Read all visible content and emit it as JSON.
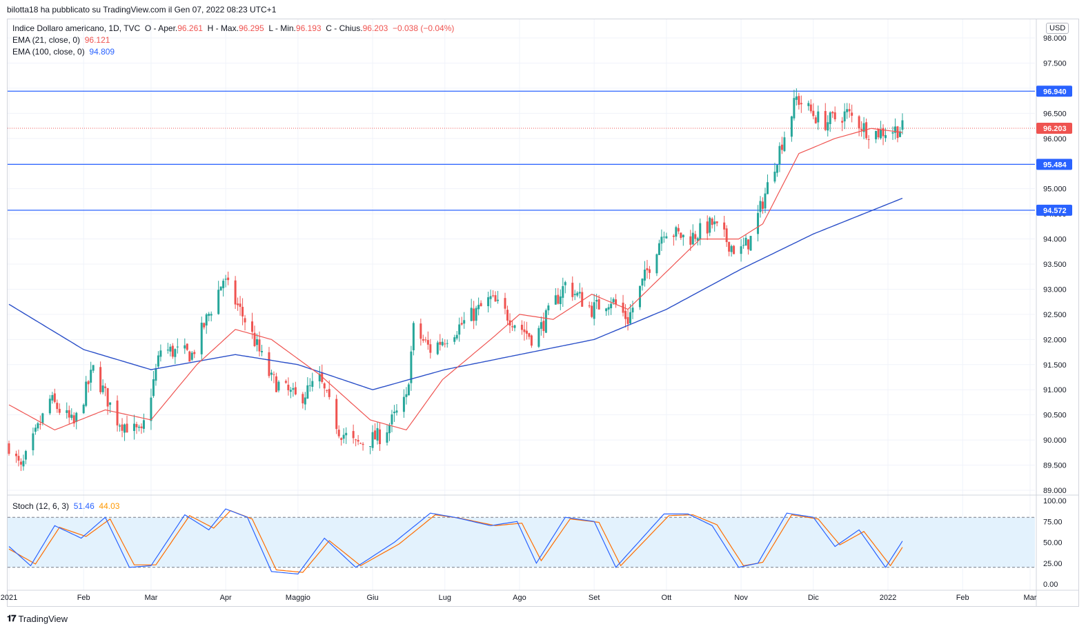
{
  "header": {
    "caption": "bilotta18 ha pubblicato su TradingView.com il Gen 07, 2022 08:23 UTC+1"
  },
  "legend": {
    "title": "Indice Dollaro americano, 1D, TVC",
    "o_label": "O - Aper.",
    "o_value": "96.261",
    "h_label": "H - Max.",
    "h_value": "96.295",
    "l_label": "L - Min.",
    "l_value": "96.193",
    "c_label": "C - Chius.",
    "c_value": "96.203",
    "change": "−0.038 (−0.04%)",
    "ema21_label": "EMA (21, close, 0)",
    "ema21_value": "96.121",
    "ema100_label": "EMA (100, close, 0)",
    "ema100_value": "94.809",
    "stoch_label": "Stoch (12, 6, 3)",
    "stoch_k": "51.46",
    "stoch_d": "44.03"
  },
  "currency": "USD",
  "footer": {
    "logo_text": "TradingView"
  },
  "colors": {
    "up": "#26a69a",
    "down": "#ef5350",
    "ema21": "#ef5350",
    "ema100": "#2a4fc8",
    "hline": "#2962ff",
    "stoch_k": "#2962ff",
    "stoch_d": "#ff6d00",
    "stoch_band": "#e3f2fd"
  },
  "chart_data": [
    {
      "type": "candlestick",
      "symbol": "Indice Dollaro americano, 1D, TVC",
      "ylim": [
        89.0,
        98.0
      ],
      "y_ticks": [
        "89.000",
        "89.500",
        "90.000",
        "90.500",
        "91.000",
        "91.500",
        "92.000",
        "92.500",
        "93.000",
        "93.500",
        "94.000",
        "94.500",
        "95.000",
        "95.500",
        "96.000",
        "96.500",
        "97.000",
        "97.500",
        "98.000"
      ],
      "x_labels": [
        {
          "label": "2021",
          "date": "2021-01-01"
        },
        {
          "label": "Feb",
          "date": "2021-02-01"
        },
        {
          "label": "Mar",
          "date": "2021-03-01"
        },
        {
          "label": "Apr",
          "date": "2021-04-01"
        },
        {
          "label": "Maggio",
          "date": "2021-05-01"
        },
        {
          "label": "Giu",
          "date": "2021-06-01"
        },
        {
          "label": "Lug",
          "date": "2021-07-01"
        },
        {
          "label": "Ago",
          "date": "2021-08-01"
        },
        {
          "label": "Set",
          "date": "2021-09-01"
        },
        {
          "label": "Ott",
          "date": "2021-10-01"
        },
        {
          "label": "Nov",
          "date": "2021-11-01"
        },
        {
          "label": "Dic",
          "date": "2021-12-01"
        },
        {
          "label": "2022",
          "date": "2022-01-01"
        },
        {
          "label": "Feb",
          "date": "2022-02-01"
        },
        {
          "label": "Mar",
          "date": "2022-03-01"
        }
      ],
      "x_start": "2020-12-31",
      "x_end": "2022-03-20",
      "horizontal_lines": [
        {
          "value": 96.94,
          "label": "96.940"
        },
        {
          "value": 95.484,
          "label": "95.484"
        },
        {
          "value": 94.572,
          "label": "94.572"
        }
      ],
      "last_price": {
        "value": 96.203,
        "label": "96.203"
      },
      "series": [
        {
          "name": "Indice Dollaro americano",
          "kind": "ohlc",
          "anchors": [
            [
              "2021-01-01",
              89.9
            ],
            [
              "2021-01-06",
              89.4
            ],
            [
              "2021-01-18",
              90.8
            ],
            [
              "2021-01-28",
              90.3
            ],
            [
              "2021-02-05",
              91.4
            ],
            [
              "2021-02-15",
              90.4
            ],
            [
              "2021-02-25",
              90.1
            ],
            [
              "2021-03-05",
              91.8
            ],
            [
              "2021-03-18",
              91.7
            ],
            [
              "2021-03-31",
              93.2
            ],
            [
              "2021-04-10",
              92.3
            ],
            [
              "2021-04-20",
              91.2
            ],
            [
              "2021-05-01",
              90.8
            ],
            [
              "2021-05-10",
              91.2
            ],
            [
              "2021-05-18",
              90.2
            ],
            [
              "2021-05-25",
              89.9
            ],
            [
              "2021-06-05",
              90.1
            ],
            [
              "2021-06-15",
              90.8
            ],
            [
              "2021-06-18",
              92.2
            ],
            [
              "2021-06-25",
              91.8
            ],
            [
              "2021-07-08",
              92.3
            ],
            [
              "2021-07-20",
              92.8
            ],
            [
              "2021-07-31",
              92.3
            ],
            [
              "2021-08-07",
              92.0
            ],
            [
              "2021-08-20",
              93.1
            ],
            [
              "2021-08-31",
              92.6
            ],
            [
              "2021-09-08",
              92.8
            ],
            [
              "2021-09-15",
              92.4
            ],
            [
              "2021-09-30",
              94.2
            ],
            [
              "2021-10-10",
              94.0
            ],
            [
              "2021-10-20",
              94.3
            ],
            [
              "2021-10-31",
              93.7
            ],
            [
              "2021-11-05",
              94.0
            ],
            [
              "2021-11-15",
              95.5
            ],
            [
              "2021-11-24",
              96.8
            ],
            [
              "2021-12-05",
              96.3
            ],
            [
              "2021-12-15",
              96.5
            ],
            [
              "2021-12-25",
              96.1
            ],
            [
              "2022-01-07",
              96.2
            ]
          ]
        },
        {
          "name": "EMA (21, close, 0)",
          "kind": "line",
          "points": [
            [
              "2021-01-01",
              90.7
            ],
            [
              "2021-01-20",
              90.2
            ],
            [
              "2021-02-10",
              90.6
            ],
            [
              "2021-03-01",
              90.4
            ],
            [
              "2021-03-20",
              91.5
            ],
            [
              "2021-04-05",
              92.2
            ],
            [
              "2021-04-20",
              92.0
            ],
            [
              "2021-05-10",
              91.3
            ],
            [
              "2021-05-31",
              90.4
            ],
            [
              "2021-06-15",
              90.2
            ],
            [
              "2021-06-30",
              91.2
            ],
            [
              "2021-07-20",
              92.0
            ],
            [
              "2021-08-01",
              92.5
            ],
            [
              "2021-08-15",
              92.4
            ],
            [
              "2021-08-31",
              92.9
            ],
            [
              "2021-09-15",
              92.6
            ],
            [
              "2021-09-30",
              93.3
            ],
            [
              "2021-10-15",
              94.0
            ],
            [
              "2021-10-31",
              94.0
            ],
            [
              "2021-11-10",
              94.3
            ],
            [
              "2021-11-25",
              95.7
            ],
            [
              "2021-12-10",
              96.0
            ],
            [
              "2021-12-25",
              96.2
            ],
            [
              "2022-01-07",
              96.12
            ]
          ]
        },
        {
          "name": "EMA (100, close, 0)",
          "kind": "line",
          "points": [
            [
              "2021-01-01",
              92.7
            ],
            [
              "2021-02-01",
              91.8
            ],
            [
              "2021-03-01",
              91.4
            ],
            [
              "2021-04-05",
              91.7
            ],
            [
              "2021-05-01",
              91.5
            ],
            [
              "2021-06-01",
              91.0
            ],
            [
              "2021-07-01",
              91.4
            ],
            [
              "2021-08-01",
              91.7
            ],
            [
              "2021-09-01",
              92.0
            ],
            [
              "2021-10-01",
              92.6
            ],
            [
              "2021-11-01",
              93.4
            ],
            [
              "2021-12-01",
              94.1
            ],
            [
              "2022-01-07",
              94.81
            ]
          ]
        }
      ]
    },
    {
      "type": "line",
      "name": "Stoch (12, 6, 3)",
      "ylim": [
        0,
        100
      ],
      "y_ticks": [
        "0.00",
        "25.00",
        "50.00",
        "75.00",
        "100.00"
      ],
      "bands": [
        20,
        80
      ],
      "series": [
        {
          "name": "K",
          "points": [
            [
              "2021-01-01",
              45
            ],
            [
              "2021-01-10",
              22
            ],
            [
              "2021-01-20",
              70
            ],
            [
              "2021-01-31",
              55
            ],
            [
              "2021-02-10",
              80
            ],
            [
              "2021-02-20",
              20
            ],
            [
              "2021-03-01",
              22
            ],
            [
              "2021-03-15",
              83
            ],
            [
              "2021-03-25",
              65
            ],
            [
              "2021-04-01",
              90
            ],
            [
              "2021-04-10",
              80
            ],
            [
              "2021-04-20",
              15
            ],
            [
              "2021-05-01",
              12
            ],
            [
              "2021-05-12",
              55
            ],
            [
              "2021-05-25",
              20
            ],
            [
              "2021-06-10",
              50
            ],
            [
              "2021-06-25",
              85
            ],
            [
              "2021-07-05",
              80
            ],
            [
              "2021-07-20",
              70
            ],
            [
              "2021-07-31",
              75
            ],
            [
              "2021-08-08",
              25
            ],
            [
              "2021-08-20",
              80
            ],
            [
              "2021-09-01",
              75
            ],
            [
              "2021-09-10",
              20
            ],
            [
              "2021-09-30",
              84
            ],
            [
              "2021-10-10",
              84
            ],
            [
              "2021-10-20",
              70
            ],
            [
              "2021-10-31",
              20
            ],
            [
              "2021-11-08",
              25
            ],
            [
              "2021-11-20",
              85
            ],
            [
              "2021-12-01",
              80
            ],
            [
              "2021-12-10",
              45
            ],
            [
              "2021-12-20",
              65
            ],
            [
              "2021-12-31",
              20
            ],
            [
              "2022-01-07",
              51.46
            ]
          ]
        },
        {
          "name": "D",
          "points": [
            [
              "2021-01-01",
              42
            ],
            [
              "2021-01-12",
              24
            ],
            [
              "2021-01-22",
              68
            ],
            [
              "2021-02-02",
              57
            ],
            [
              "2021-02-12",
              78
            ],
            [
              "2021-02-22",
              23
            ],
            [
              "2021-03-03",
              23
            ],
            [
              "2021-03-17",
              82
            ],
            [
              "2021-03-27",
              67
            ],
            [
              "2021-04-03",
              88
            ],
            [
              "2021-04-12",
              78
            ],
            [
              "2021-04-22",
              17
            ],
            [
              "2021-05-03",
              14
            ],
            [
              "2021-05-14",
              52
            ],
            [
              "2021-05-27",
              22
            ],
            [
              "2021-06-12",
              48
            ],
            [
              "2021-06-27",
              83
            ],
            [
              "2021-07-07",
              79
            ],
            [
              "2021-07-22",
              70
            ],
            [
              "2021-08-02",
              73
            ],
            [
              "2021-08-10",
              28
            ],
            [
              "2021-08-22",
              78
            ],
            [
              "2021-09-03",
              74
            ],
            [
              "2021-09-12",
              22
            ],
            [
              "2021-10-02",
              82
            ],
            [
              "2021-10-12",
              83
            ],
            [
              "2021-10-22",
              71
            ],
            [
              "2021-11-02",
              22
            ],
            [
              "2021-11-10",
              26
            ],
            [
              "2021-11-22",
              83
            ],
            [
              "2021-12-03",
              78
            ],
            [
              "2021-12-12",
              47
            ],
            [
              "2021-12-22",
              63
            ],
            [
              "2022-01-02",
              22
            ],
            [
              "2022-01-07",
              44.03
            ]
          ]
        }
      ]
    }
  ]
}
